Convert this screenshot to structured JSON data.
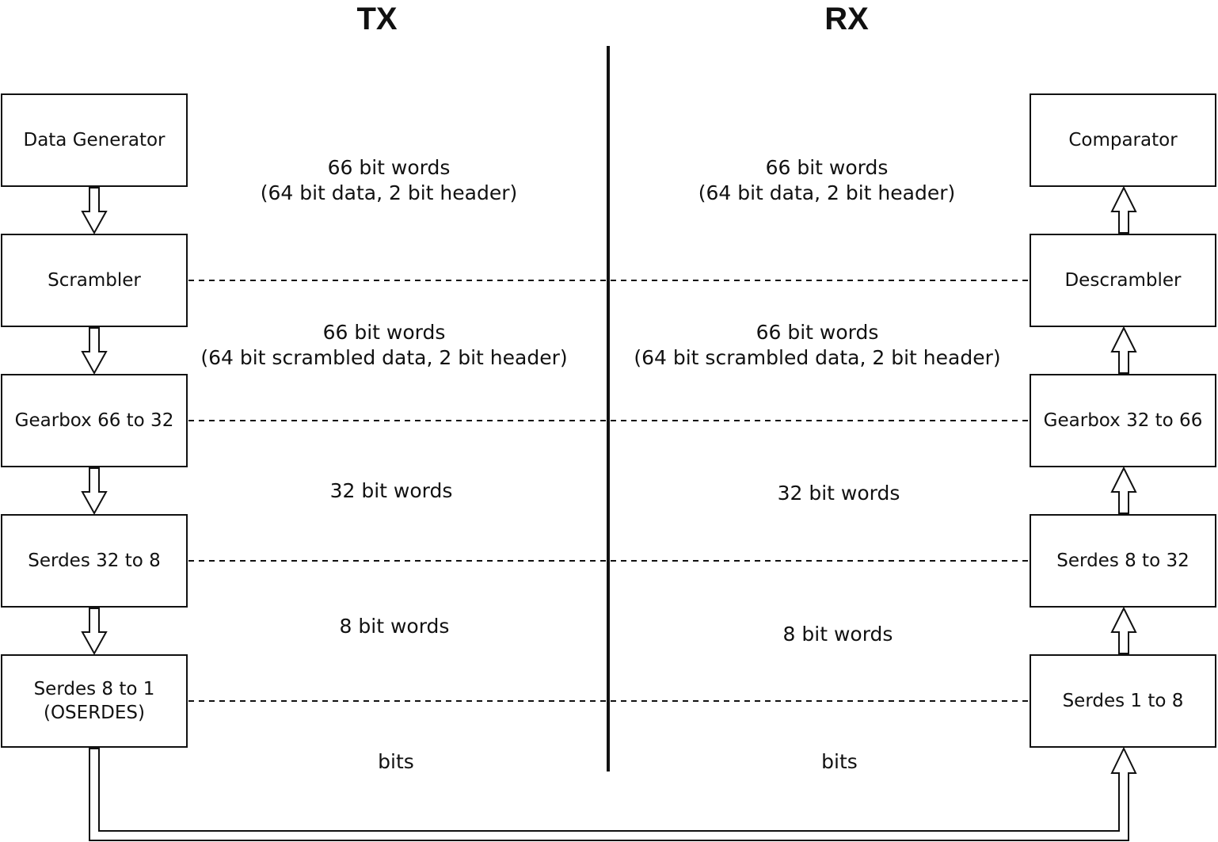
{
  "headings": {
    "tx": "TX",
    "rx": "RX"
  },
  "tx_blocks": [
    {
      "id": "data-generator",
      "label": "Data Generator"
    },
    {
      "id": "scrambler",
      "label": "Scrambler"
    },
    {
      "id": "gearbox-66-to-32",
      "label": "Gearbox 66 to 32"
    },
    {
      "id": "serdes-32-to-8",
      "label": "Serdes 32 to 8"
    },
    {
      "id": "serdes-8-to-1",
      "label": "Serdes 8 to 1\n(OSERDES)"
    }
  ],
  "rx_blocks": [
    {
      "id": "comparator",
      "label": "Comparator"
    },
    {
      "id": "descrambler",
      "label": "Descrambler"
    },
    {
      "id": "gearbox-32-to-66",
      "label": "Gearbox 32 to 66"
    },
    {
      "id": "serdes-8-to-32",
      "label": "Serdes 8 to 32"
    },
    {
      "id": "serdes-1-to-8",
      "label": "Serdes 1 to 8"
    }
  ],
  "tx_notes": [
    "66 bit words\n(64 bit data, 2 bit header)",
    "66 bit words\n(64 bit scrambled data, 2 bit header)",
    "32 bit words",
    "8 bit words",
    "bits"
  ],
  "rx_notes": [
    "66 bit words\n(64 bit data, 2 bit header)",
    "66 bit words\n(64 bit scrambled data, 2 bit header)",
    "32 bit words",
    "8 bit words",
    "bits"
  ]
}
